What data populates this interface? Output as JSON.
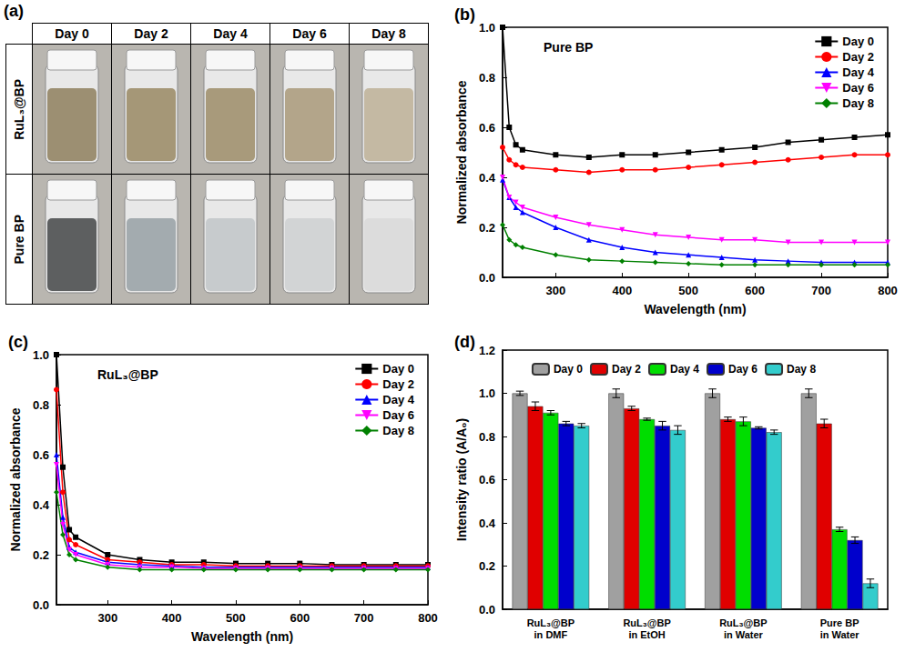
{
  "photo": {
    "label": "(a)",
    "columns": [
      "Day 0",
      "Day 2",
      "Day 4",
      "Day 6",
      "Day 8"
    ],
    "rows": [
      {
        "label": "RuL₃@BP",
        "colors": [
          "#9c8f72",
          "#a59777",
          "#a89a7b",
          "#b3a58a",
          "#c4b9a3"
        ]
      },
      {
        "label": "Pure BP",
        "colors": [
          "#5d5f60",
          "#a3abaf",
          "#c7cbcd",
          "#d2d4d5",
          "#dcdcdc"
        ]
      }
    ]
  },
  "chart_data": [
    {
      "type": "line",
      "panel": "(b)",
      "title": "Pure BP",
      "x_label": "Wavelength (nm)",
      "y_label": "Normalized absorbance",
      "x": [
        220,
        230,
        240,
        250,
        300,
        350,
        400,
        450,
        500,
        550,
        600,
        650,
        700,
        750,
        800
      ],
      "xlim": [
        220,
        800
      ],
      "xticks": [
        300,
        400,
        500,
        600,
        700,
        800
      ],
      "ylim": [
        0,
        1
      ],
      "yticks": [
        {
          "value": 0,
          "label": "0.0"
        },
        {
          "value": 0.2,
          "label": "0.2"
        },
        {
          "value": 0.4,
          "label": "0.4"
        },
        {
          "value": 0.6,
          "label": "0.6"
        },
        {
          "value": 0.8,
          "label": "0.8"
        },
        {
          "value": 1,
          "label": "1.0"
        }
      ],
      "grid": false,
      "legend": "top right",
      "series": [
        {
          "name": "Day 0",
          "color": "#000000",
          "marker": "square",
          "values": [
            1.0,
            0.6,
            0.53,
            0.51,
            0.49,
            0.48,
            0.49,
            0.49,
            0.5,
            0.51,
            0.52,
            0.54,
            0.55,
            0.56,
            0.57
          ]
        },
        {
          "name": "Day 2",
          "color": "#ff0000",
          "marker": "circle",
          "values": [
            0.52,
            0.47,
            0.45,
            0.44,
            0.43,
            0.42,
            0.43,
            0.43,
            0.44,
            0.45,
            0.46,
            0.47,
            0.48,
            0.49,
            0.49
          ]
        },
        {
          "name": "Day 4",
          "color": "#0000ff",
          "marker": "triangle",
          "values": [
            0.39,
            0.32,
            0.28,
            0.26,
            0.2,
            0.15,
            0.12,
            0.1,
            0.09,
            0.08,
            0.07,
            0.065,
            0.06,
            0.06,
            0.06
          ]
        },
        {
          "name": "Day 6",
          "color": "#ff00ff",
          "marker": "triangle_down",
          "values": [
            0.4,
            0.32,
            0.3,
            0.28,
            0.24,
            0.21,
            0.19,
            0.17,
            0.16,
            0.15,
            0.15,
            0.14,
            0.14,
            0.14,
            0.14
          ]
        },
        {
          "name": "Day 8",
          "color": "#008000",
          "marker": "diamond",
          "values": [
            0.21,
            0.15,
            0.13,
            0.12,
            0.09,
            0.07,
            0.065,
            0.06,
            0.055,
            0.05,
            0.05,
            0.05,
            0.05,
            0.05,
            0.05
          ]
        }
      ]
    },
    {
      "type": "line",
      "panel": "(c)",
      "title": "RuL₃@BP",
      "x_label": "Wavelength (nm)",
      "y_label": "Normalized absorbance",
      "x": [
        220,
        230,
        240,
        250,
        300,
        350,
        400,
        450,
        500,
        550,
        600,
        650,
        700,
        750,
        800
      ],
      "xlim": [
        220,
        800
      ],
      "xticks": [
        300,
        400,
        500,
        600,
        700,
        800
      ],
      "ylim": [
        0,
        1
      ],
      "yticks": [
        {
          "value": 0,
          "label": "0.0"
        },
        {
          "value": 0.2,
          "label": "0.2"
        },
        {
          "value": 0.4,
          "label": "0.4"
        },
        {
          "value": 0.6,
          "label": "0.6"
        },
        {
          "value": 0.8,
          "label": "0.8"
        },
        {
          "value": 1,
          "label": "1.0"
        }
      ],
      "grid": false,
      "legend": "top right",
      "series": [
        {
          "name": "Day 0",
          "color": "#000000",
          "marker": "square",
          "values": [
            1.0,
            0.55,
            0.3,
            0.27,
            0.2,
            0.18,
            0.17,
            0.17,
            0.165,
            0.165,
            0.165,
            0.16,
            0.16,
            0.16,
            0.16
          ]
        },
        {
          "name": "Day 2",
          "color": "#ff0000",
          "marker": "circle",
          "values": [
            0.86,
            0.45,
            0.26,
            0.24,
            0.18,
            0.17,
            0.16,
            0.16,
            0.155,
            0.155,
            0.155,
            0.155,
            0.155,
            0.155,
            0.155
          ]
        },
        {
          "name": "Day 4",
          "color": "#0000ff",
          "marker": "triangle",
          "values": [
            0.6,
            0.35,
            0.23,
            0.21,
            0.17,
            0.16,
            0.155,
            0.15,
            0.15,
            0.15,
            0.15,
            0.15,
            0.15,
            0.15,
            0.15
          ]
        },
        {
          "name": "Day 6",
          "color": "#ff00ff",
          "marker": "triangle_down",
          "values": [
            0.56,
            0.32,
            0.22,
            0.2,
            0.16,
            0.15,
            0.15,
            0.145,
            0.145,
            0.145,
            0.145,
            0.145,
            0.145,
            0.145,
            0.145
          ]
        },
        {
          "name": "Day 8",
          "color": "#008000",
          "marker": "diamond",
          "values": [
            0.45,
            0.28,
            0.2,
            0.18,
            0.15,
            0.14,
            0.14,
            0.14,
            0.14,
            0.14,
            0.14,
            0.14,
            0.14,
            0.14,
            0.14
          ]
        }
      ]
    },
    {
      "type": "bar",
      "panel": "(d)",
      "y_label": "Intensity ratio (A/A₀)",
      "categories": [
        "RuL₃@BP in DMF",
        "RuL₃@BP in EtOH",
        "RuL₃@BP in Water",
        "Pure BP in Water"
      ],
      "ylim": [
        0,
        1.2
      ],
      "yticks": [
        {
          "value": 0,
          "label": "0.0"
        },
        {
          "value": 0.2,
          "label": "0.2"
        },
        {
          "value": 0.4,
          "label": "0.4"
        },
        {
          "value": 0.6,
          "label": "0.6"
        },
        {
          "value": 0.8,
          "label": "0.8"
        },
        {
          "value": 1,
          "label": "1.0"
        },
        {
          "value": 1.2,
          "label": "1.2"
        }
      ],
      "grid": false,
      "legend": "top",
      "series": [
        {
          "name": "Day 0",
          "color": "#a0a0a0",
          "values": [
            1.0,
            1.0,
            1.0,
            1.0
          ],
          "errors": [
            0.01,
            0.02,
            0.02,
            0.02
          ]
        },
        {
          "name": "Day 2",
          "color": "#e00000",
          "values": [
            0.94,
            0.93,
            0.88,
            0.86
          ],
          "errors": [
            0.02,
            0.01,
            0.01,
            0.02
          ]
        },
        {
          "name": "Day 4",
          "color": "#00dd00",
          "values": [
            0.91,
            0.88,
            0.87,
            0.37
          ],
          "errors": [
            0.01,
            0.005,
            0.02,
            0.01
          ]
        },
        {
          "name": "Day 6",
          "color": "#0000cc",
          "values": [
            0.86,
            0.85,
            0.84,
            0.32
          ],
          "errors": [
            0.01,
            0.02,
            0.005,
            0.015
          ]
        },
        {
          "name": "Day 8",
          "color": "#33cccc",
          "values": [
            0.85,
            0.83,
            0.82,
            0.12
          ],
          "errors": [
            0.01,
            0.02,
            0.01,
            0.02
          ]
        }
      ]
    }
  ]
}
